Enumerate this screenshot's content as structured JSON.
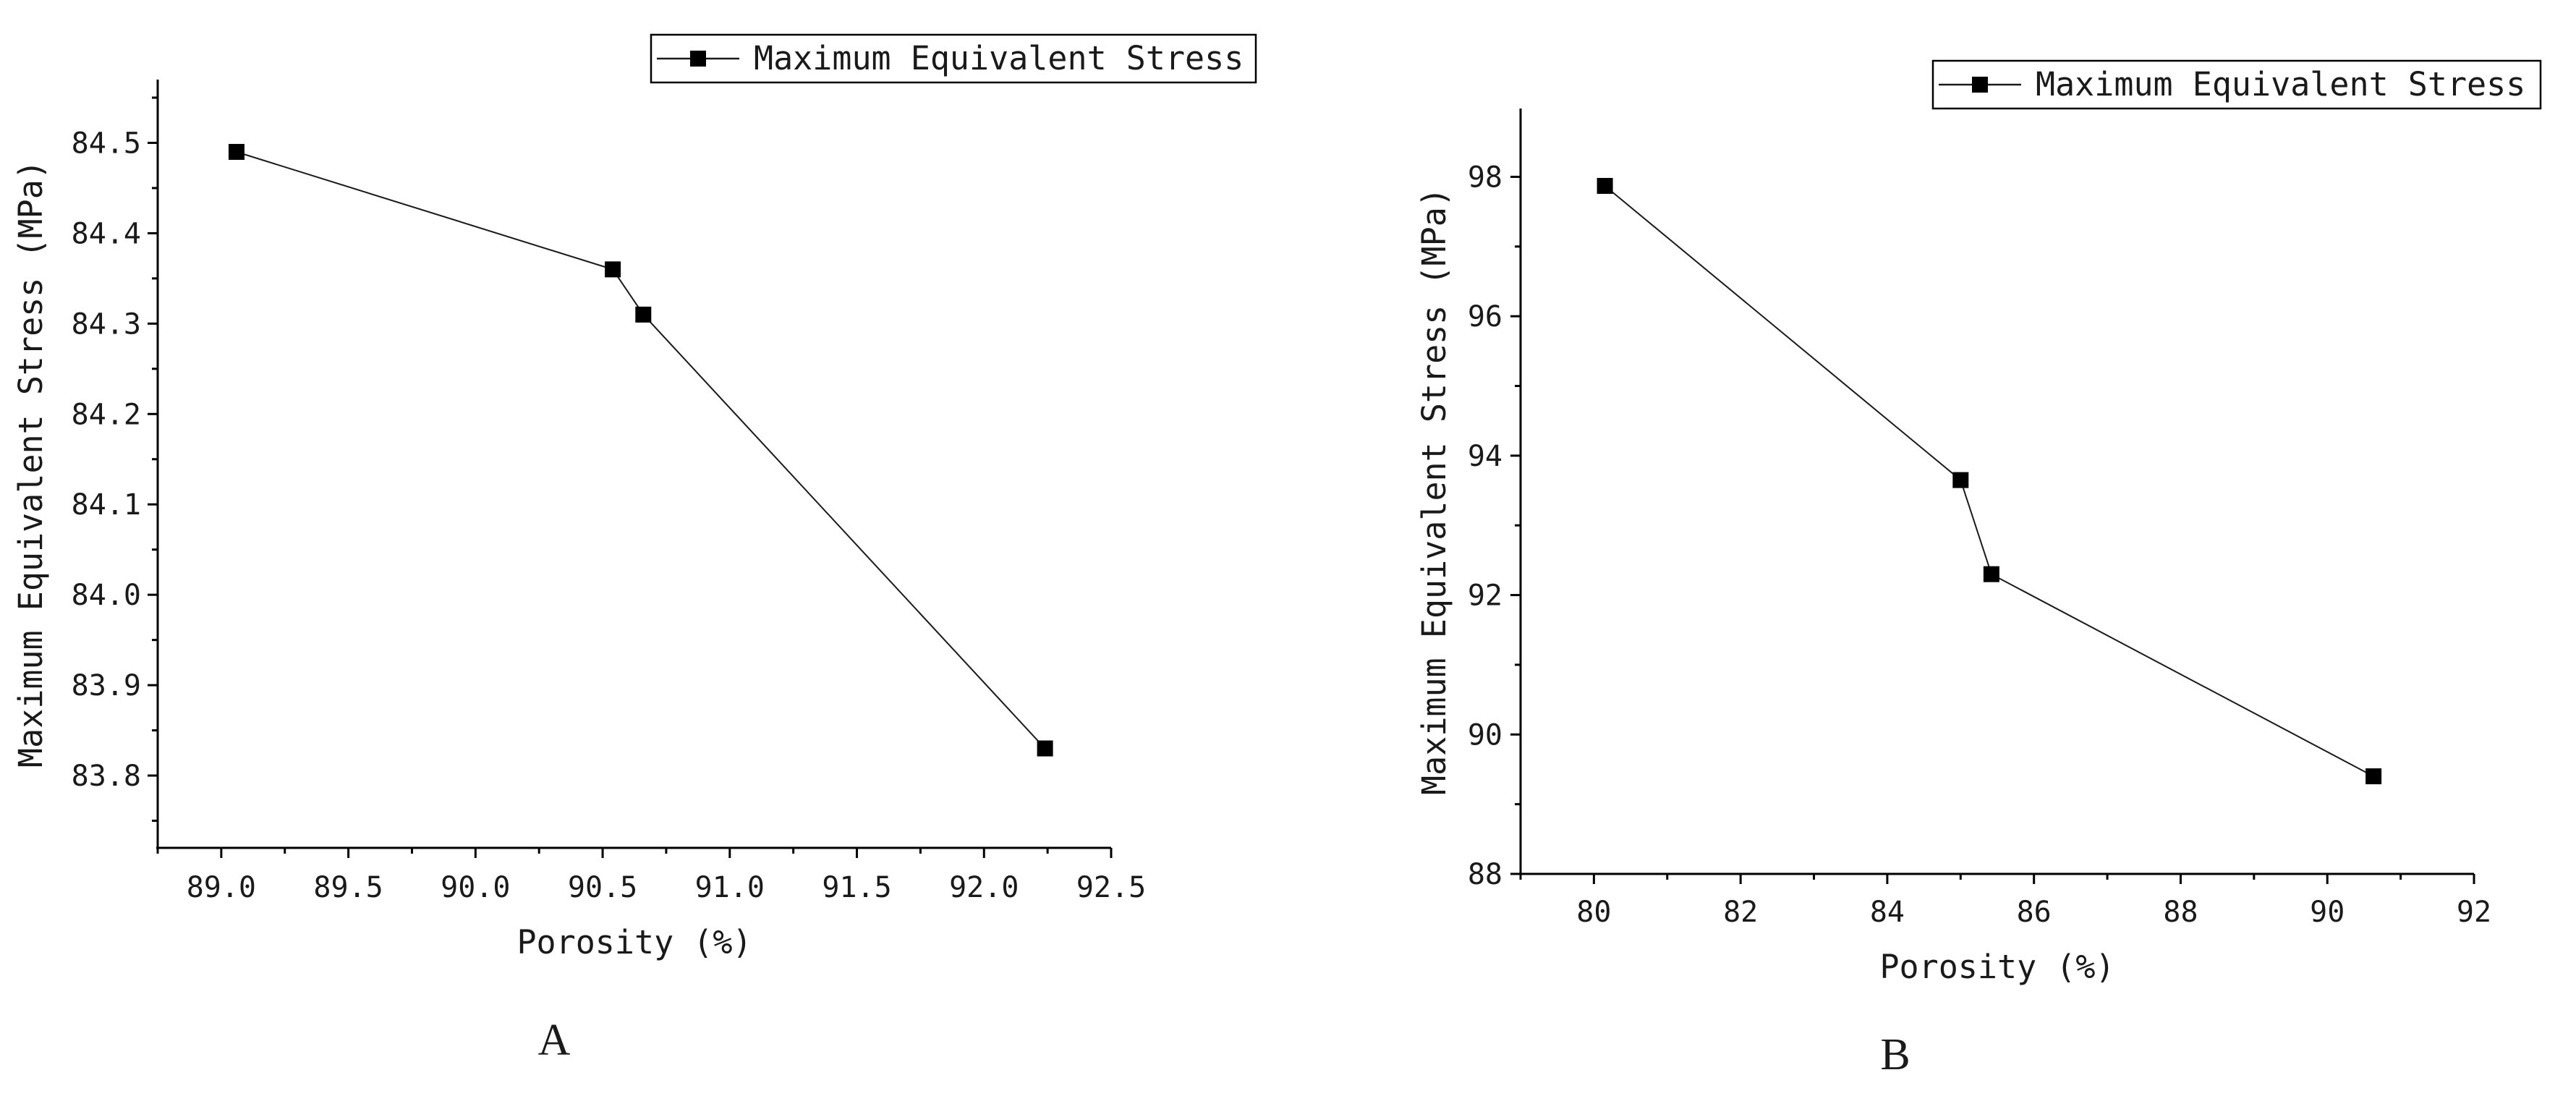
{
  "colors": {
    "line": "#1a1a1a",
    "marker": "#000000",
    "axis": "#000000",
    "background": "#ffffff"
  },
  "chart_data": [
    {
      "type": "line",
      "panel_label": "A",
      "xlabel": "Porosity (%)",
      "ylabel": "Maximum Equivalent Stress (MPa)",
      "xlim": [
        88.75,
        92.5
      ],
      "ylim": [
        83.72,
        84.57
      ],
      "xticks": [
        89.0,
        89.5,
        90.0,
        90.5,
        91.0,
        91.5,
        92.0,
        92.5
      ],
      "xtick_labels": [
        "89.0",
        "89.5",
        "90.0",
        "90.5",
        "91.0",
        "91.5",
        "92.0",
        "92.5"
      ],
      "yticks": [
        83.8,
        83.9,
        84.0,
        84.1,
        84.2,
        84.3,
        84.4,
        84.5
      ],
      "ytick_labels": [
        "83.8",
        "83.9",
        "84.0",
        "84.1",
        "84.2",
        "84.3",
        "84.4",
        "84.5"
      ],
      "x_minor_ticks": true,
      "y_minor_ticks": true,
      "grid": false,
      "legend_position": "top-right",
      "series": [
        {
          "name": "Maximum Equivalent Stress",
          "marker": "square",
          "x": [
            89.06,
            90.54,
            90.66,
            92.24
          ],
          "y": [
            84.49,
            84.36,
            84.31,
            83.83
          ]
        }
      ]
    },
    {
      "type": "line",
      "panel_label": "B",
      "xlabel": "Porosity (%)",
      "ylabel": "Maximum Equivalent Stress (MPa)",
      "xlim": [
        79.0,
        92.0
      ],
      "ylim": [
        88.0,
        98.98
      ],
      "xticks": [
        80,
        82,
        84,
        86,
        88,
        90,
        92
      ],
      "xtick_labels": [
        "80",
        "82",
        "84",
        "86",
        "88",
        "90",
        "92"
      ],
      "yticks": [
        88,
        90,
        92,
        94,
        96,
        98
      ],
      "ytick_labels": [
        "88",
        "90",
        "92",
        "94",
        "96",
        "98"
      ],
      "x_minor_ticks": true,
      "y_minor_ticks": true,
      "grid": false,
      "legend_position": "top-right",
      "series": [
        {
          "name": "Maximum Equivalent Stress",
          "marker": "square",
          "x": [
            80.15,
            85.0,
            85.42,
            90.63
          ],
          "y": [
            97.87,
            93.65,
            92.3,
            89.4
          ]
        }
      ]
    }
  ]
}
